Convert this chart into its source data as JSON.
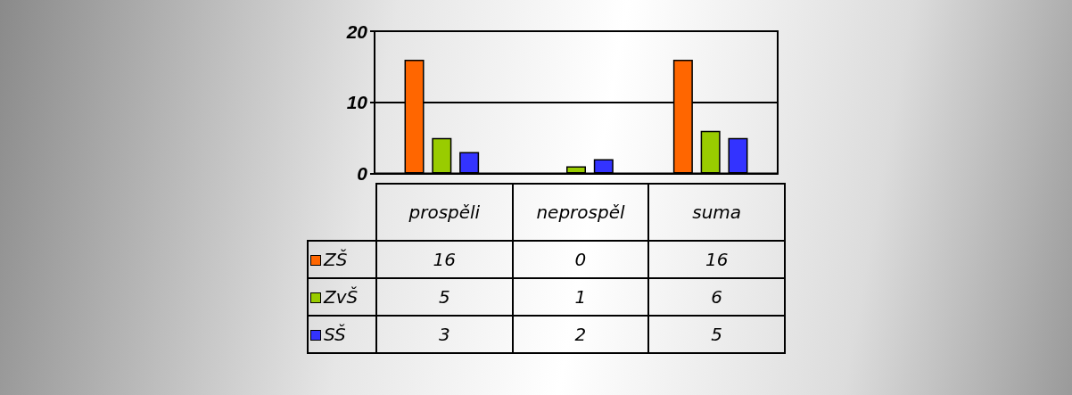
{
  "chart_data": {
    "type": "bar",
    "categories": [
      "prospěli",
      "neprospěl",
      "suma"
    ],
    "series": [
      {
        "name": "ZŠ",
        "color": "#ff6600",
        "values": [
          16,
          0,
          16
        ]
      },
      {
        "name": "ZvŠ",
        "color": "#99cc00",
        "values": [
          5,
          1,
          6
        ]
      },
      {
        "name": "SŠ",
        "color": "#3333ff",
        "values": [
          3,
          2,
          5
        ]
      }
    ],
    "ylim": [
      0,
      20
    ],
    "yticks": [
      0,
      10,
      20
    ],
    "grid": "y",
    "legend": "left",
    "data_labels": true
  }
}
